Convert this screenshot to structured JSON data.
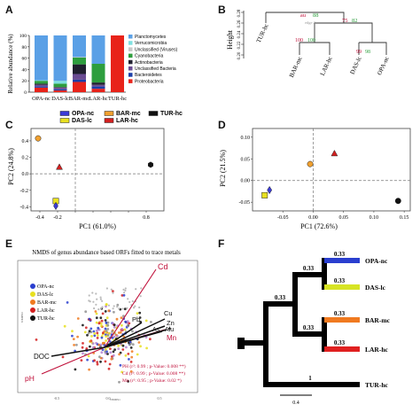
{
  "panel_letters": [
    "A",
    "B",
    "C",
    "D",
    "E",
    "F"
  ],
  "chart_data": [
    {
      "panel": "A",
      "type": "bar",
      "ylabel": "Relative abundance (%)",
      "ylim": [
        0,
        100
      ],
      "yticks": [
        "0",
        "20",
        "40",
        "60",
        "80",
        "100"
      ],
      "categories": [
        "OPA-nc",
        "DAS-lc",
        "BAR-mc",
        "LAR-hc",
        "TUR-hc"
      ],
      "series": [
        {
          "name": "Proteobacteria",
          "color": "#e8231a",
          "values": [
            8,
            3,
            18,
            6,
            100
          ]
        },
        {
          "name": "Bacteroidetes",
          "color": "#1a3ea8",
          "values": [
            2,
            2,
            4,
            4,
            0
          ]
        },
        {
          "name": "Unclassified Bacteria",
          "color": "#6a4c93",
          "values": [
            3,
            3,
            10,
            3,
            0
          ]
        },
        {
          "name": "Actinobacteria",
          "color": "#1f1f2e",
          "values": [
            2,
            1,
            17,
            4,
            0
          ]
        },
        {
          "name": "Cyanobacteria",
          "color": "#2e9e3e",
          "values": [
            5,
            6,
            12,
            33,
            0
          ]
        },
        {
          "name": "Unclassified (Viruses)",
          "color": "#c8c8c8",
          "values": [
            0,
            0,
            1,
            0,
            0
          ]
        },
        {
          "name": "Verrucomicrobia",
          "color": "#7fe0e0",
          "values": [
            1,
            5,
            0,
            0,
            0
          ]
        },
        {
          "name": "Planctomycetes",
          "color": "#5aa0e6",
          "values": [
            79,
            80,
            38,
            50,
            0
          ]
        }
      ]
    },
    {
      "panel": "B",
      "type": "dendrogram",
      "ylabel": "Height",
      "yticks": [
        "0.28",
        "0.26",
        "0.24",
        "0.22",
        "0.20"
      ],
      "leaves": [
        "TUR-hc",
        "BAR-mc",
        "LAR-hc",
        "DAS-lc",
        "OPA-nc"
      ],
      "top_labels": {
        "au": "au",
        "bp": "bp",
        "edge": "edge #"
      },
      "nodes": [
        {
          "au": "au",
          "bp": "88"
        },
        {
          "au": "75",
          "bp": "82"
        },
        {
          "au": "100",
          "bp": "100"
        },
        {
          "au": "99",
          "bp": "98"
        }
      ]
    },
    {
      "panel": "C",
      "type": "scatter",
      "xlabel": "PC1 (61.0%)",
      "ylabel": "PC2 (24.8%)",
      "xlim": [
        -0.5,
        1.0
      ],
      "ylim": [
        -0.45,
        0.55
      ],
      "xticks": [
        -0.4,
        -0.2,
        0,
        0.2,
        0.4,
        0.6,
        0.8
      ],
      "yticks": [
        -0.4,
        -0.2,
        0,
        0.2,
        0.4
      ],
      "xtick_labels": [
        "-0.4",
        "-0.2",
        "",
        "",
        "",
        "",
        "0.8"
      ],
      "ytick_labels": [
        "-0.4",
        "-0.2",
        "0.0",
        "0.2",
        "0.4"
      ],
      "legend": [
        {
          "name": "OPA-nc",
          "color": "#3b3bd8"
        },
        {
          "name": "BAR-mc",
          "color": "#f0a030"
        },
        {
          "name": "TUR-hc",
          "color": "#111111"
        },
        {
          "name": "DAS-lc",
          "color": "#e8e020"
        },
        {
          "name": "LAR-hc",
          "color": "#d42020"
        }
      ],
      "points": [
        {
          "name": "BAR-mc",
          "x": -0.42,
          "y": 0.43,
          "shape": "circle",
          "color": "#f0a030"
        },
        {
          "name": "LAR-hc",
          "x": -0.18,
          "y": 0.08,
          "shape": "triangle",
          "color": "#d42020"
        },
        {
          "name": "TUR-hc",
          "x": 0.85,
          "y": 0.11,
          "shape": "hexagon",
          "color": "#111111"
        },
        {
          "name": "DAS-lc",
          "x": -0.22,
          "y": -0.33,
          "shape": "square",
          "color": "#e8e020"
        },
        {
          "name": "OPA-nc",
          "x": -0.22,
          "y": -0.39,
          "shape": "diamond",
          "color": "#3b3bd8"
        }
      ]
    },
    {
      "panel": "D",
      "type": "scatter",
      "xlabel": "PC1 (72.6%)",
      "ylabel": "PC2 (21.5%)",
      "xlim": [
        -0.1,
        0.16
      ],
      "ylim": [
        -0.07,
        0.12
      ],
      "xticks": [
        -0.05,
        0,
        0.05,
        0.1,
        0.15
      ],
      "yticks": [
        -0.05,
        0,
        0.05,
        0.1
      ],
      "xtick_labels": [
        "-0.05",
        "0.00",
        "0.05",
        "0.10",
        "0.15"
      ],
      "ytick_labels": [
        "-0.05",
        "0.00",
        "0.05",
        "0.10"
      ],
      "points": [
        {
          "name": "LAR-hc",
          "x": 0.035,
          "y": 0.062,
          "shape": "triangle",
          "color": "#d42020"
        },
        {
          "name": "BAR-mc",
          "x": -0.005,
          "y": 0.038,
          "shape": "circle",
          "color": "#f0a030"
        },
        {
          "name": "OPA-nc",
          "x": -0.072,
          "y": -0.022,
          "shape": "diamond",
          "color": "#3b3bd8"
        },
        {
          "name": "DAS-lc",
          "x": -0.08,
          "y": -0.034,
          "shape": "square",
          "color": "#e8e020"
        },
        {
          "name": "TUR-hc",
          "x": 0.14,
          "y": -0.047,
          "shape": "circle",
          "color": "#111111"
        }
      ]
    },
    {
      "panel": "E",
      "type": "scatter",
      "title": "NMDS of genus abundance based ORFs fitted to trace metals",
      "xlabel": "NMDS1",
      "ylabel": "NMDS1",
      "xtick_labels": [
        "-0.5",
        "0.0",
        "0.5"
      ],
      "legend": [
        {
          "name": "OPA-nc",
          "color": "#2a3fcf"
        },
        {
          "name": "DAS-lc",
          "color": "#e8e020"
        },
        {
          "name": "BAR-mc",
          "color": "#f07a20"
        },
        {
          "name": "LAR-hc",
          "color": "#d42020"
        },
        {
          "name": "TUR-hc",
          "color": "#111111"
        }
      ],
      "vectors": [
        {
          "name": "Cd",
          "color": "#c0103a"
        },
        {
          "name": "Cu",
          "color": "#111111"
        },
        {
          "name": "Zn",
          "color": "#111111"
        },
        {
          "name": "Pb",
          "color": "#111111"
        },
        {
          "name": "As",
          "color": "#111111"
        },
        {
          "name": "Alu",
          "color": "#111111"
        },
        {
          "name": "Mn",
          "color": "#c0103a"
        },
        {
          "name": "DOC",
          "color": "#111111"
        },
        {
          "name": "pH",
          "color": "#c0103a"
        }
      ],
      "stats": [
        "PH (r²: 0.99 ; p-Value: 0.008 **)",
        "Cd (r²: 0.99 ; p-Value: 0.008 **)",
        "Mn (r²: 0.95 ; p-Value: 0.02 *)"
      ]
    },
    {
      "panel": "F",
      "type": "dendrogram",
      "leaves": [
        "OPA-nc",
        "DAS-lc",
        "BAR-mc",
        "LAR-hc",
        "TUR-hc"
      ],
      "branch_labels": [
        "0.33",
        "0.33",
        "0.33",
        "0.33",
        "0.33",
        "0.33",
        "0.33",
        "1"
      ],
      "scale_label": "0.4"
    }
  ]
}
